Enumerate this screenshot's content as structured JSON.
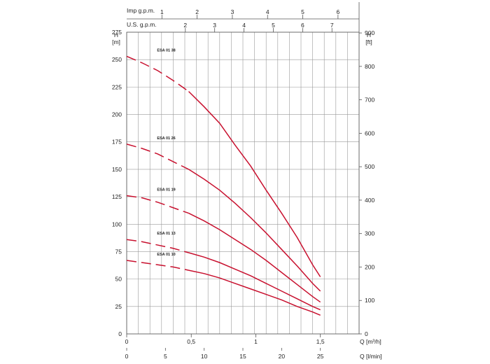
{
  "chart_data": {
    "type": "line",
    "x_label_primary": "Q [l/min]",
    "x_label_secondary": "Q [m³/h]",
    "y_label_left": "H [m]",
    "y_label_left_name": "H",
    "y_label_left_unit": "[m]",
    "y_label_right_name": "H",
    "y_label_right_unit": "[ft]",
    "x_label_primary_name": "Q [l/min]",
    "x_label_secondary_name": "Q [m³/h]",
    "top_axis_1_label": "Imp g.p.m.",
    "top_axis_2_label": "U.S. g.p.m.",
    "xlim": [
      0,
      30
    ],
    "ylim": [
      0,
      275
    ],
    "x_ticks": [
      0,
      5,
      10,
      15,
      20,
      25
    ],
    "x_ticks_m3h": [
      {
        "label": "0",
        "value": 0
      },
      {
        "label": "0,5",
        "value": 8.333
      },
      {
        "label": "1",
        "value": 16.667
      },
      {
        "label": "1,5",
        "value": 25
      }
    ],
    "y_ticks_left": [
      0,
      25,
      50,
      75,
      100,
      125,
      150,
      175,
      200,
      225,
      250,
      275
    ],
    "y_ticks_right": [
      0,
      100,
      200,
      300,
      400,
      500,
      600,
      700,
      800,
      900
    ],
    "top_ticks_imp": [
      1,
      2,
      3,
      4,
      5,
      6
    ],
    "top_ticks_us": [
      2,
      3,
      4,
      5,
      6,
      7
    ],
    "grid": true,
    "curve_color": "#c8102e",
    "series": [
      {
        "name": "ESA 01 38",
        "dashed_until": 8,
        "points": [
          [
            0,
            253
          ],
          [
            2,
            247
          ],
          [
            4,
            240
          ],
          [
            6,
            231
          ],
          [
            8,
            221
          ],
          [
            10,
            207
          ],
          [
            12,
            192
          ],
          [
            14,
            172
          ],
          [
            16,
            153
          ],
          [
            18,
            131
          ],
          [
            20,
            110
          ],
          [
            22,
            88
          ],
          [
            24,
            63
          ],
          [
            25,
            52
          ]
        ]
      },
      {
        "name": "ESA 01 26",
        "dashed_until": 8,
        "points": [
          [
            0,
            173
          ],
          [
            2,
            169
          ],
          [
            4,
            164
          ],
          [
            6,
            157
          ],
          [
            8,
            150
          ],
          [
            10,
            141
          ],
          [
            12,
            131
          ],
          [
            14,
            119
          ],
          [
            16,
            106
          ],
          [
            18,
            92
          ],
          [
            20,
            77
          ],
          [
            22,
            62
          ],
          [
            24,
            46
          ],
          [
            25,
            39
          ]
        ]
      },
      {
        "name": "ESA 01 19",
        "dashed_until": 8,
        "points": [
          [
            0,
            126
          ],
          [
            2,
            124
          ],
          [
            4,
            120
          ],
          [
            6,
            115
          ],
          [
            8,
            110
          ],
          [
            10,
            103
          ],
          [
            12,
            95
          ],
          [
            14,
            86
          ],
          [
            16,
            77
          ],
          [
            18,
            67
          ],
          [
            20,
            56
          ],
          [
            22,
            45
          ],
          [
            24,
            34
          ],
          [
            25,
            29
          ]
        ]
      },
      {
        "name": "ESA 01 13",
        "dashed_until": 8,
        "points": [
          [
            0,
            86
          ],
          [
            2,
            84
          ],
          [
            4,
            81
          ],
          [
            6,
            78
          ],
          [
            8,
            74
          ],
          [
            10,
            70
          ],
          [
            12,
            65
          ],
          [
            14,
            59
          ],
          [
            16,
            53
          ],
          [
            18,
            46
          ],
          [
            20,
            39
          ],
          [
            22,
            32
          ],
          [
            24,
            25
          ],
          [
            25,
            22
          ]
        ]
      },
      {
        "name": "ESA 01 10",
        "dashed_until": 8,
        "points": [
          [
            0,
            67
          ],
          [
            2,
            65
          ],
          [
            4,
            63
          ],
          [
            6,
            61
          ],
          [
            8,
            58
          ],
          [
            10,
            55
          ],
          [
            12,
            51
          ],
          [
            14,
            46
          ],
          [
            16,
            41
          ],
          [
            18,
            36
          ],
          [
            20,
            31
          ],
          [
            22,
            25
          ],
          [
            24,
            20
          ],
          [
            25,
            17
          ]
        ]
      }
    ]
  }
}
